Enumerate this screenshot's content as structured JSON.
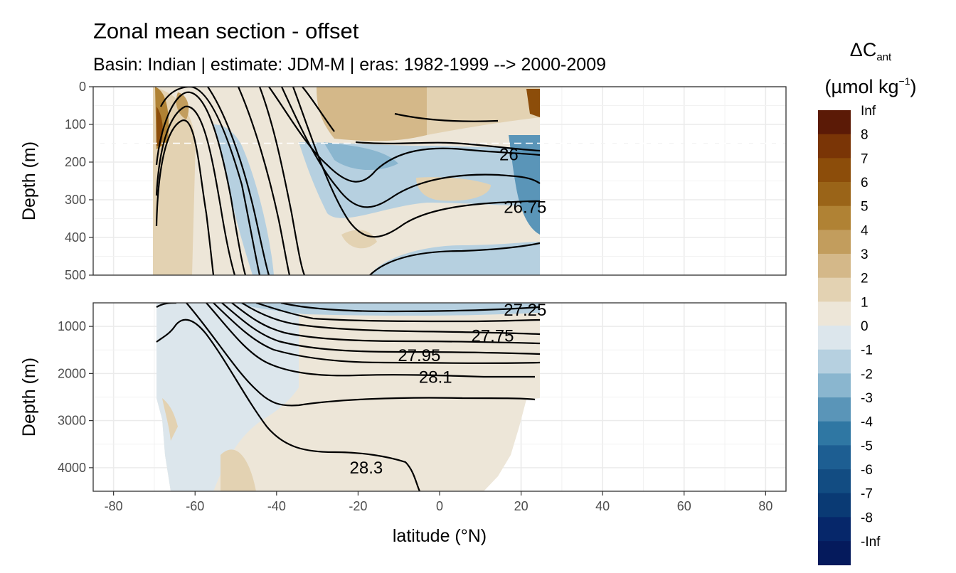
{
  "chart_data": {
    "type": "heatmap",
    "title": "Zonal mean section - offset",
    "subtitle": "Basin: Indian | estimate: JDM-M | eras: 1982-1999 --> 2000-2009",
    "xlabel": "latitude (°N)",
    "ylabel": "Depth (m)",
    "xlim": [
      -85,
      85
    ],
    "x_ticks": [
      -80,
      -60,
      -40,
      -20,
      0,
      20,
      40,
      60,
      80
    ],
    "x_tick_labels": [
      "-80",
      "-60",
      "-40",
      "-20",
      "0",
      "20",
      "40",
      "60",
      "80"
    ],
    "grid": true,
    "data_lat_range": [
      -69.5,
      24.5
    ],
    "panels": [
      {
        "name": "upper",
        "ylim": [
          500,
          0
        ],
        "y_ticks": [
          0,
          100,
          200,
          300,
          400,
          500
        ],
        "y_tick_labels": [
          "0",
          "100",
          "200",
          "300",
          "400",
          "500"
        ],
        "reference_depth": 150
      },
      {
        "name": "lower",
        "ylim": [
          4500,
          500
        ],
        "y_ticks": [
          1000,
          2000,
          3000,
          4000
        ],
        "y_tick_labels": [
          "1000",
          "2000",
          "3000",
          "4000"
        ]
      }
    ],
    "contour_labels": [
      {
        "text": "26",
        "lat": 17,
        "depth": 180,
        "panel": "upper"
      },
      {
        "text": "26.75",
        "lat": 21,
        "depth": 320,
        "panel": "upper"
      },
      {
        "text": "27.25",
        "lat": 21,
        "depth": 650,
        "panel": "lower"
      },
      {
        "text": "27.75",
        "lat": 13,
        "depth": 1200,
        "panel": "lower"
      },
      {
        "text": "27.95",
        "lat": -5,
        "depth": 1620,
        "panel": "lower"
      },
      {
        "text": "28.1",
        "lat": -1,
        "depth": 2080,
        "panel": "lower"
      },
      {
        "text": "28.3",
        "lat": -18,
        "depth": 4000,
        "panel": "lower"
      }
    ],
    "legend": {
      "title": "ΔC",
      "title_sub": "ant",
      "units_prefix": "(µmol kg",
      "units_sup": "−1",
      "units_suffix": ")",
      "position": "right",
      "labels": [
        "Inf",
        "8",
        "7",
        "6",
        "5",
        "4",
        "3",
        "2",
        "1",
        "0",
        "-1",
        "-2",
        "-3",
        "-4",
        "-5",
        "-6",
        "-7",
        "-8",
        "-Inf"
      ],
      "colors": [
        "#5b1a06",
        "#7a3506",
        "#8c4d0a",
        "#9a6418",
        "#b08234",
        "#c29d5d",
        "#d4b889",
        "#e3d2b2",
        "#ede6d8",
        "#dce6ec",
        "#b6d0e0",
        "#8ab6cf",
        "#5a95b8",
        "#2f77a3",
        "#1d5e92",
        "#124c82",
        "#0a3a74",
        "#06276a",
        "#051a5c"
      ]
    }
  }
}
